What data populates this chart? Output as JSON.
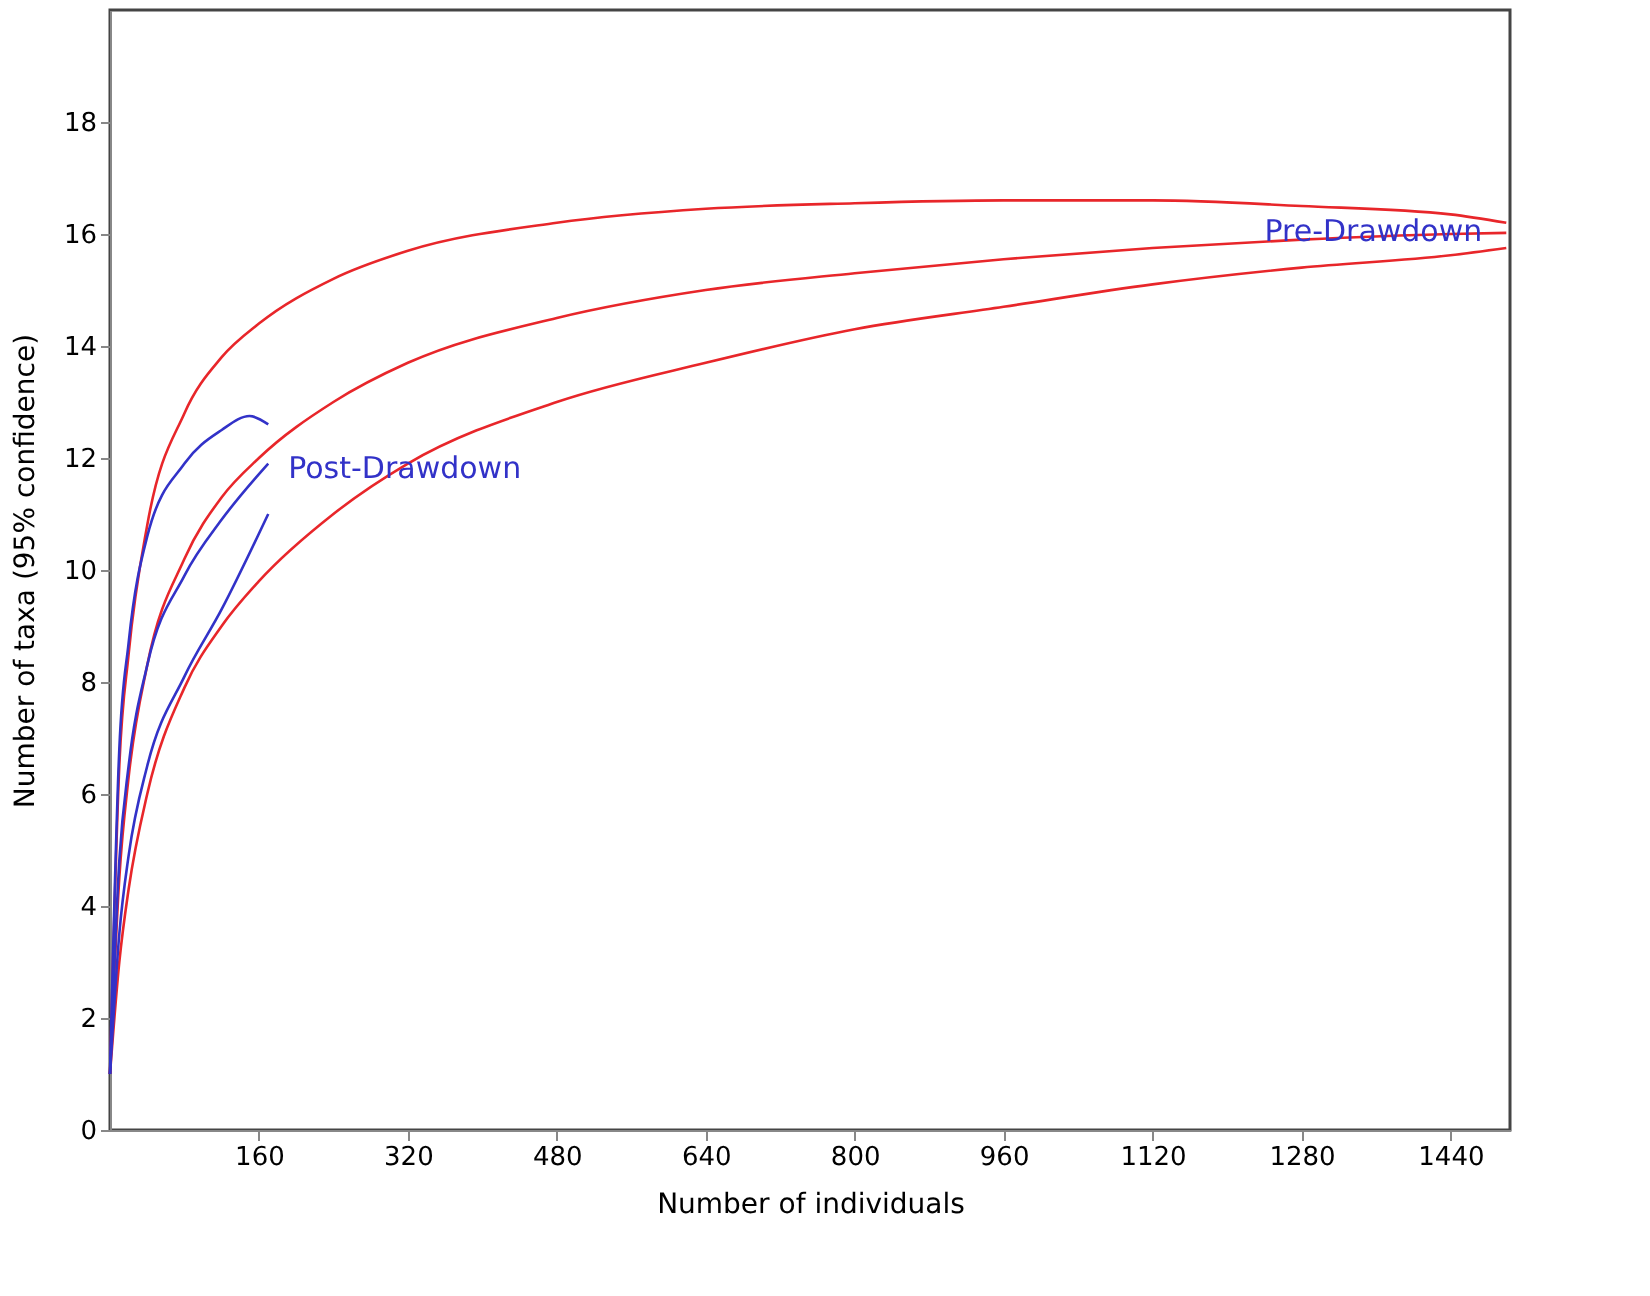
{
  "chart_data": {
    "type": "line",
    "xlabel": "Number of individuals",
    "ylabel": "Number of taxa (95% confidence)",
    "xlim": [
      0,
      1504
    ],
    "xticks": [
      160,
      320,
      480,
      640,
      800,
      960,
      1120,
      1280,
      1440
    ],
    "ylim": [
      0,
      20
    ],
    "yticks": [
      0,
      2,
      4,
      6,
      8,
      10,
      12,
      14,
      16,
      18
    ],
    "grid": false,
    "legend": false,
    "series": [
      {
        "color": "#e8262a",
        "x": [
          0,
          10,
          20,
          40,
          80,
          120,
          160,
          240,
          320,
          480,
          640,
          800,
          960,
          1120,
          1280,
          1440,
          1500
        ],
        "values": [
          1,
          6.5,
          8.5,
          10.8,
          12.8,
          13.8,
          14.4,
          15.2,
          15.7,
          16.2,
          16.45,
          16.55,
          16.6,
          16.6,
          16.5,
          16.35,
          16.2
        ]
      },
      {
        "name": "Pre-Drawdown",
        "color": "#e8262a",
        "x": [
          0,
          10,
          20,
          40,
          80,
          120,
          160,
          240,
          320,
          480,
          640,
          800,
          960,
          1120,
          1280,
          1440,
          1500
        ],
        "values": [
          1,
          4.5,
          6.3,
          8.3,
          10.2,
          11.3,
          12.0,
          13.0,
          13.7,
          14.5,
          15.0,
          15.3,
          15.55,
          15.75,
          15.9,
          16.0,
          16.02
        ]
      },
      {
        "color": "#e8262a",
        "x": [
          0,
          10,
          20,
          40,
          80,
          120,
          160,
          240,
          320,
          480,
          640,
          800,
          960,
          1120,
          1280,
          1440,
          1500
        ],
        "values": [
          1,
          3,
          4.3,
          6.0,
          7.9,
          9.0,
          9.8,
          11.0,
          11.9,
          13.0,
          13.7,
          14.3,
          14.7,
          15.1,
          15.4,
          15.62,
          15.75
        ]
      },
      {
        "color": "#3232c8",
        "x": [
          0,
          10,
          20,
          40,
          80,
          120,
          150,
          170
        ],
        "values": [
          1,
          6.8,
          8.7,
          10.6,
          11.9,
          12.5,
          12.75,
          12.6
        ]
      },
      {
        "name": "Post-Drawdown",
        "color": "#3232c8",
        "x": [
          0,
          10,
          20,
          40,
          80,
          120,
          170
        ],
        "values": [
          1,
          4.8,
          6.5,
          8.3,
          9.9,
          10.9,
          11.9
        ]
      },
      {
        "color": "#3232c8",
        "x": [
          0,
          10,
          20,
          40,
          80,
          120,
          170
        ],
        "values": [
          1,
          3.5,
          4.9,
          6.5,
          8.1,
          9.3,
          11.0
        ]
      }
    ]
  }
}
